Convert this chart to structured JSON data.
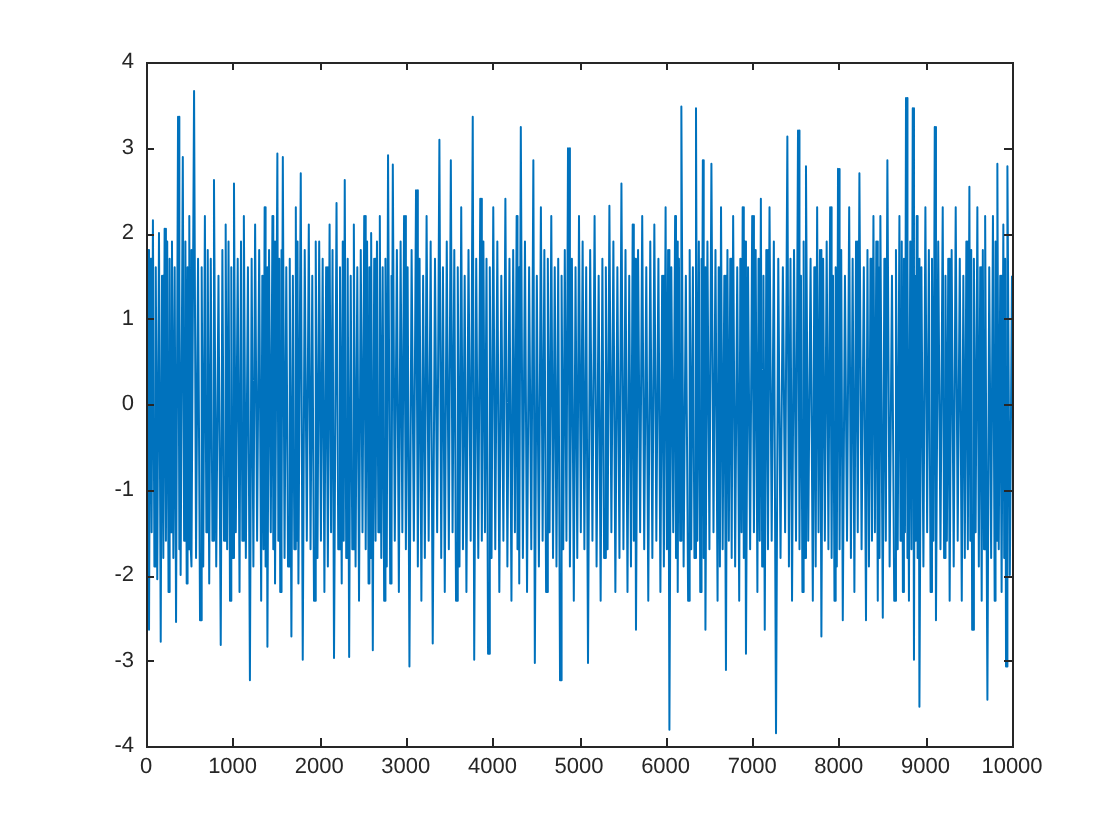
{
  "chart_data": {
    "type": "line",
    "x": [
      1,
      12,
      24,
      35,
      50,
      65,
      80,
      97,
      113,
      130,
      150,
      170,
      185,
      200,
      215,
      230,
      245,
      260,
      273,
      287,
      300,
      316,
      331,
      347,
      370,
      380,
      390,
      400,
      425,
      440,
      455,
      470,
      480,
      490,
      500,
      510,
      520,
      530,
      555,
      578,
      601,
      624,
      643,
      661,
      680,
      697,
      713,
      730,
      748,
      767,
      785,
      811,
      837,
      863,
      882,
      901,
      920,
      937,
      953,
      970,
      985,
      1001,
      1016,
      1037,
      1059,
      1080,
      1097,
      1113,
      1130,
      1153,
      1177,
      1200,
      1220,
      1240,
      1260,
      1283,
      1307,
      1330,
      1343,
      1357,
      1370,
      1381,
      1391,
      1402,
      1421,
      1441,
      1460,
      1470,
      1480,
      1490,
      1517,
      1528,
      1539,
      1550,
      1560,
      1570,
      1580,
      1600,
      1620,
      1640,
      1660,
      1679,
      1696,
      1713,
      1730,
      1740,
      1750,
      1760,
      1787,
      1810,
      1833,
      1857,
      1880,
      1900,
      1920,
      1940,
      1960,
      1980,
      2000,
      2020,
      2040,
      2060,
      2080,
      2100,
      2120,
      2137,
      2154,
      2171,
      2200,
      2220,
      2240,
      2260,
      2272,
      2283,
      2295,
      2312,
      2329,
      2346,
      2364,
      2382,
      2400,
      2420,
      2440,
      2460,
      2480,
      2500,
      2520,
      2537,
      2553,
      2570,
      2580,
      2590,
      2600,
      2619,
      2635,
      2651,
      2667,
      2683,
      2700,
      2717,
      2733,
      2750,
      2765,
      2780,
      2795,
      2820,
      2830,
      2840,
      2850,
      2873,
      2897,
      2920,
      2940,
      2960,
      2980,
      3001,
      3021,
      3042,
      3067,
      3093,
      3118,
      3139,
      3159,
      3180,
      3200,
      3220,
      3240,
      3264,
      3287,
      3311,
      3337,
      3362,
      3388,
      3409,
      3429,
      3450,
      3473,
      3497,
      3520,
      3540,
      3560,
      3580,
      3600,
      3620,
      3640,
      3660,
      3680,
      3700,
      3724,
      3749,
      3773,
      3790,
      3813,
      3837,
      3860,
      3878,
      3896,
      3914,
      3932,
      3950,
      3970,
      3990,
      4010,
      4033,
      4057,
      4080,
      4103,
      4127,
      4150,
      4173,
      4197,
      4220,
      4240,
      4260,
      4280,
      4290,
      4300,
      4310,
      4328,
      4352,
      4376,
      4400,
      4424,
      4449,
      4473,
      4490,
      4513,
      4537,
      4560,
      4580,
      4600,
      4620,
      4640,
      4660,
      4680,
      4700,
      4720,
      4740,
      4760,
      4781,
      4799,
      4818,
      4836,
      4855,
      4873,
      4895,
      4918,
      4940,
      4960,
      4980,
      5000,
      5021,
      5042,
      5062,
      5083,
      5104,
      5129,
      5155,
      5180,
      5203,
      5227,
      5250,
      5270,
      5290,
      5310,
      5330,
      5351,
      5374,
      5397,
      5420,
      5443,
      5467,
      5490,
      5513,
      5537,
      5560,
      5580,
      5600,
      5620,
      5633,
      5645,
      5658,
      5682,
      5706,
      5730,
      5753,
      5777,
      5800,
      5823,
      5847,
      5870,
      5893,
      5917,
      5940,
      5960,
      5980,
      6000,
      6015,
      6029,
      6044,
      6066,
      6088,
      6110,
      6120,
      6130,
      6140,
      6154,
      6168,
      6182,
      6208,
      6234,
      6260,
      6278,
      6296,
      6315,
      6333,
      6351,
      6367,
      6384,
      6400,
      6410,
      6420,
      6430,
      6440,
      6450,
      6460,
      6483,
      6506,
      6529,
      6553,
      6576,
      6600,
      6613,
      6627,
      6640,
      6659,
      6678,
      6697,
      6714,
      6730,
      6747,
      6763,
      6780,
      6803,
      6827,
      6850,
      6863,
      6877,
      6890,
      6903,
      6915,
      6928,
      6952,
      6976,
      7000,
      7020,
      7040,
      7060,
      7073,
      7087,
      7100,
      7115,
      7130,
      7145,
      7163,
      7182,
      7200,
      7225,
      7250,
      7275,
      7301,
      7327,
      7354,
      7380,
      7406,
      7424,
      7442,
      7460,
      7483,
      7506,
      7529,
      7546,
      7563,
      7580,
      7594,
      7607,
      7621,
      7647,
      7674,
      7700,
      7717,
      7733,
      7750,
      7766,
      7783,
      7799,
      7819,
      7839,
      7860,
      7880,
      7900,
      7917,
      7933,
      7950,
      7964,
      7977,
      7991,
      8009,
      8028,
      8046,
      8071,
      8095,
      8120,
      8140,
      8160,
      8180,
      8199,
      8219,
      8238,
      8263,
      8289,
      8314,
      8331,
      8348,
      8366,
      8383,
      8400,
      8417,
      8433,
      8450,
      8460,
      8470,
      8480,
      8508,
      8526,
      8543,
      8561,
      8587,
      8614,
      8640,
      8660,
      8680,
      8700,
      8713,
      8727,
      8740,
      8752,
      8764,
      8776,
      8787,
      8799,
      8810,
      8825,
      8839,
      8854,
      8868,
      8879,
      8889,
      8900,
      8910,
      8921,
      8931,
      8954,
      8977,
      9000,
      9020,
      9040,
      9060,
      9076,
      9092,
      9108,
      9122,
      9148,
      9174,
      9200,
      9216,
      9232,
      9248,
      9264,
      9280,
      9303,
      9327,
      9350,
      9373,
      9397,
      9420,
      9438,
      9455,
      9473,
      9490,
      9508,
      9519,
      9529,
      9540,
      9560,
      9580,
      9600,
      9617,
      9633,
      9650,
      9663,
      9677,
      9690,
      9716,
      9737,
      9759,
      9780,
      9800,
      9810,
      9821,
      9831,
      9847,
      9864,
      9880,
      9900,
      9910,
      9921,
      9931,
      9947,
      9975,
      10000
    ],
    "series": [
      {
        "color": "#0072bd",
        "values": [
          1.5,
          -1.6,
          1.8,
          -2.64,
          1.7,
          -1.5,
          2.15,
          -1.9,
          1.6,
          -2.05,
          2.0,
          -2.78,
          1.5,
          -1.8,
          2.05,
          -1.6,
          1.9,
          -2.2,
          1.7,
          -1.5,
          1.9,
          -1.8,
          1.6,
          -2.55,
          3.36,
          -1.7,
          1.5,
          -2.0,
          2.89,
          -1.6,
          1.9,
          -2.1,
          1.6,
          -1.7,
          2.2,
          -1.5,
          1.8,
          -1.9,
          3.66,
          -1.8,
          1.7,
          -2.53,
          1.6,
          -1.9,
          2.2,
          -1.5,
          1.8,
          -2.1,
          1.7,
          -1.6,
          2.62,
          -1.9,
          1.5,
          -2.82,
          1.8,
          -1.6,
          2.1,
          -1.7,
          1.9,
          -2.3,
          1.6,
          -1.8,
          2.58,
          -1.5,
          1.7,
          -2.2,
          1.9,
          -1.6,
          2.2,
          -1.8,
          1.6,
          -3.23,
          1.7,
          -1.9,
          2.1,
          -1.6,
          1.8,
          -2.3,
          1.5,
          -1.7,
          2.3,
          -1.9,
          1.6,
          -2.84,
          1.8,
          -1.5,
          2.2,
          -1.7,
          1.9,
          -2.1,
          2.93,
          -1.6,
          1.7,
          -2.2,
          1.8,
          -1.5,
          2.89,
          -1.8,
          1.6,
          -1.9,
          1.7,
          -2.72,
          1.5,
          -1.7,
          2.3,
          -1.6,
          1.9,
          -2.1,
          2.7,
          -2.99,
          1.8,
          -1.6,
          2.1,
          -1.7,
          1.5,
          -2.3,
          1.9,
          -1.8,
          1.9,
          -1.6,
          1.7,
          -2.2,
          1.6,
          -1.9,
          2.1,
          -1.5,
          1.8,
          -2.97,
          2.35,
          -1.7,
          1.6,
          -2.1,
          1.9,
          -1.6,
          2.62,
          -1.8,
          1.7,
          -2.96,
          1.5,
          -1.7,
          2.1,
          -1.9,
          1.6,
          -2.3,
          1.8,
          -1.5,
          2.2,
          -1.7,
          1.9,
          -2.1,
          1.6,
          -1.8,
          2.0,
          -2.88,
          1.7,
          -1.6,
          1.9,
          -1.5,
          2.2,
          -1.8,
          1.6,
          -2.3,
          1.7,
          -1.9,
          2.91,
          -2.1,
          1.5,
          -1.7,
          2.8,
          -1.6,
          1.8,
          -2.2,
          1.9,
          -1.5,
          2.2,
          -1.7,
          1.6,
          -3.07,
          1.8,
          -1.6,
          2.5,
          -1.9,
          1.7,
          -2.3,
          1.5,
          -1.8,
          2.2,
          -1.6,
          1.9,
          -2.8,
          1.7,
          -1.5,
          3.09,
          -1.8,
          1.6,
          -2.2,
          1.9,
          -1.7,
          2.85,
          -1.5,
          1.8,
          -2.3,
          1.6,
          -1.9,
          2.3,
          -1.7,
          1.5,
          -2.2,
          1.8,
          -1.6,
          3.36,
          -2.99,
          1.7,
          -1.8,
          2.4,
          -1.6,
          1.9,
          -1.5,
          1.7,
          -2.92,
          1.6,
          -1.8,
          2.3,
          -1.7,
          1.9,
          -2.2,
          1.5,
          -1.6,
          2.4,
          -1.9,
          1.7,
          -2.3,
          1.8,
          -1.5,
          2.2,
          -1.7,
          1.6,
          -2.1,
          3.24,
          -1.8,
          1.9,
          -2.2,
          1.6,
          -1.7,
          2.85,
          -3.03,
          1.5,
          -1.9,
          2.3,
          -1.6,
          1.8,
          -2.2,
          1.7,
          -1.5,
          2.2,
          -1.8,
          1.6,
          -1.9,
          1.7,
          -3.23,
          1.5,
          -1.7,
          1.8,
          -1.6,
          2.99,
          -1.9,
          1.7,
          -2.3,
          1.6,
          -1.8,
          2.2,
          -1.5,
          1.9,
          -1.7,
          1.6,
          -3.03,
          1.8,
          -1.6,
          2.2,
          -1.9,
          1.5,
          -2.3,
          1.7,
          -1.8,
          1.6,
          -1.7,
          2.32,
          -1.5,
          1.9,
          -2.2,
          1.6,
          -1.8,
          2.58,
          -1.7,
          1.8,
          -2.2,
          1.5,
          -1.9,
          2.1,
          -1.6,
          1.7,
          -2.64,
          1.8,
          -1.5,
          2.2,
          -1.7,
          1.6,
          -2.3,
          1.9,
          -1.8,
          2.1,
          -1.6,
          1.7,
          -2.2,
          1.5,
          -1.9,
          2.3,
          -1.7,
          1.8,
          -3.81,
          1.6,
          -1.5,
          2.2,
          -1.8,
          1.9,
          -2.2,
          1.7,
          -1.6,
          3.48,
          -1.9,
          1.5,
          -2.3,
          1.8,
          -1.7,
          1.6,
          -1.8,
          3.46,
          -1.6,
          1.9,
          -2.2,
          1.7,
          -1.5,
          2.85,
          -1.8,
          1.6,
          -2.64,
          1.9,
          -1.7,
          2.81,
          -1.5,
          1.8,
          -2.3,
          1.6,
          -1.9,
          2.3,
          -1.7,
          1.5,
          -3.11,
          1.8,
          -1.6,
          1.7,
          -1.8,
          2.2,
          -1.9,
          1.6,
          -2.3,
          1.7,
          -1.5,
          2.3,
          -1.8,
          1.9,
          -2.92,
          1.6,
          -1.7,
          2.2,
          -1.5,
          1.8,
          -2.2,
          1.7,
          -1.6,
          2.4,
          -1.9,
          1.5,
          -2.64,
          1.8,
          -1.7,
          2.3,
          -1.6,
          1.9,
          -3.85,
          1.7,
          -1.8,
          1.6,
          -1.5,
          3.13,
          -1.9,
          1.7,
          -2.3,
          1.8,
          -1.6,
          3.2,
          -1.7,
          1.5,
          -2.2,
          1.9,
          -1.8,
          2.78,
          -1.6,
          1.7,
          -2.3,
          1.6,
          -1.9,
          2.3,
          -1.5,
          1.8,
          -2.72,
          1.7,
          -1.6,
          1.9,
          -1.7,
          2.3,
          -1.8,
          1.5,
          -2.3,
          1.6,
          -1.9,
          2.75,
          -1.7,
          1.8,
          -2.53,
          1.5,
          -1.6,
          2.3,
          -1.8,
          1.7,
          -2.2,
          1.9,
          -1.5,
          2.7,
          -1.7,
          1.6,
          -2.53,
          1.8,
          -1.9,
          1.7,
          -1.6,
          2.2,
          -1.5,
          1.9,
          -2.3,
          1.6,
          -1.8,
          2.2,
          -2.5,
          1.7,
          -1.6,
          2.85,
          -1.9,
          1.5,
          -2.3,
          1.8,
          -1.7,
          2.2,
          -1.6,
          1.9,
          -2.2,
          1.7,
          -1.5,
          3.58,
          -1.8,
          1.6,
          -2.3,
          1.9,
          -1.7,
          3.46,
          -2.99,
          1.5,
          -1.6,
          2.2,
          -1.8,
          1.7,
          -3.54,
          1.6,
          -1.9,
          2.3,
          -1.5,
          1.8,
          -2.2,
          1.7,
          -1.6,
          3.24,
          -2.53,
          1.9,
          -1.7,
          2.3,
          -1.8,
          1.5,
          -1.6,
          1.7,
          -2.3,
          1.8,
          -1.9,
          2.3,
          -1.6,
          1.7,
          -2.3,
          1.5,
          -1.8,
          1.9,
          -1.7,
          2.54,
          -1.6,
          1.8,
          -2.64,
          1.7,
          -1.5,
          2.3,
          -1.9,
          1.6,
          -2.3,
          1.8,
          -1.7,
          2.2,
          -3.46,
          1.6,
          -1.8,
          2.2,
          -2.3,
          1.9,
          -1.6,
          2.81,
          -1.7,
          1.5,
          -2.2,
          2.1,
          -1.8,
          1.7,
          -3.07,
          2.78,
          -2.0,
          1.5
        ]
      }
    ],
    "xlim": [
      0,
      10000
    ],
    "xticks": [
      0,
      1000,
      2000,
      3000,
      4000,
      5000,
      6000,
      7000,
      8000,
      9000,
      10000
    ],
    "ylim": [
      -4,
      4
    ],
    "yticks": [
      -4,
      -3,
      -2,
      -1,
      0,
      1,
      2,
      3,
      4
    ],
    "grid": false,
    "legend": false,
    "marker": "none",
    "line_style": "solid"
  }
}
